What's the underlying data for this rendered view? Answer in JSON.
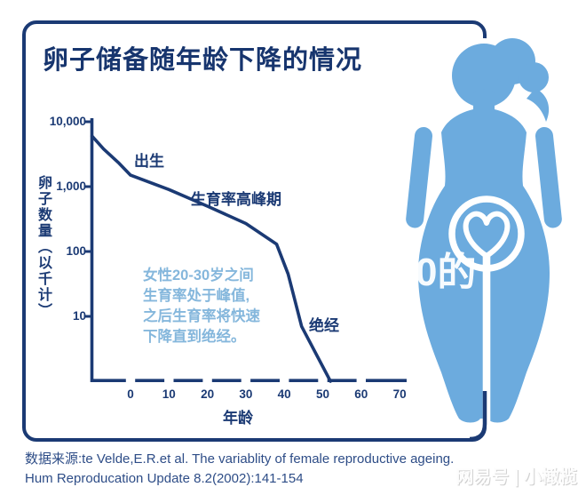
{
  "title": "卵子储备随年龄下降的情况",
  "colors": {
    "navy": "#1b3a74",
    "title_navy": "#17356e",
    "light_blue_text": "#85b7dc",
    "figure_blue": "#6cabde",
    "source_text": "#2e4d87"
  },
  "chart_data": {
    "type": "line",
    "title": "卵子储备随年龄下降的情况",
    "x_label": "年龄",
    "y_label": "卵子数量（以千计）",
    "x_ticks": [
      "0",
      "10",
      "20",
      "30",
      "40",
      "50",
      "60",
      "70"
    ],
    "y_ticks": [
      "10,000",
      "1,000",
      "100",
      "10"
    ],
    "y_scale": "log",
    "x_range": [
      -10,
      72
    ],
    "y_range_log": [
      1,
      10000
    ],
    "grid": false,
    "series": [
      {
        "name": "卵子数量(千)",
        "points": [
          [
            -10,
            6000
          ],
          [
            -7,
            3800
          ],
          [
            -3,
            2300
          ],
          [
            0,
            1500
          ],
          [
            10,
            900
          ],
          [
            20,
            500
          ],
          [
            30,
            270
          ],
          [
            38,
            130
          ],
          [
            41,
            45
          ],
          [
            44.5,
            7
          ],
          [
            52,
            1
          ]
        ]
      }
    ],
    "annotations": {
      "birth": "出生",
      "peak": "生育率高峰期",
      "menopause": "绝经",
      "note_lines": [
        "女性20-30岁之间",
        "生育率处于峰值,",
        "之后生育率将快速",
        "下降直到绝经。"
      ]
    }
  },
  "figure": {
    "icon": "pregnant-woman-heart-icon"
  },
  "watermarks": {
    "center": "0的",
    "platform": "网易号 | 小橄榄"
  },
  "source": {
    "line1": "数据来源:te Velde,E.R.et al. The variablity of female reproductive ageing.",
    "line2": "Hum Reproducation Update 8.2(2002):141-154"
  }
}
